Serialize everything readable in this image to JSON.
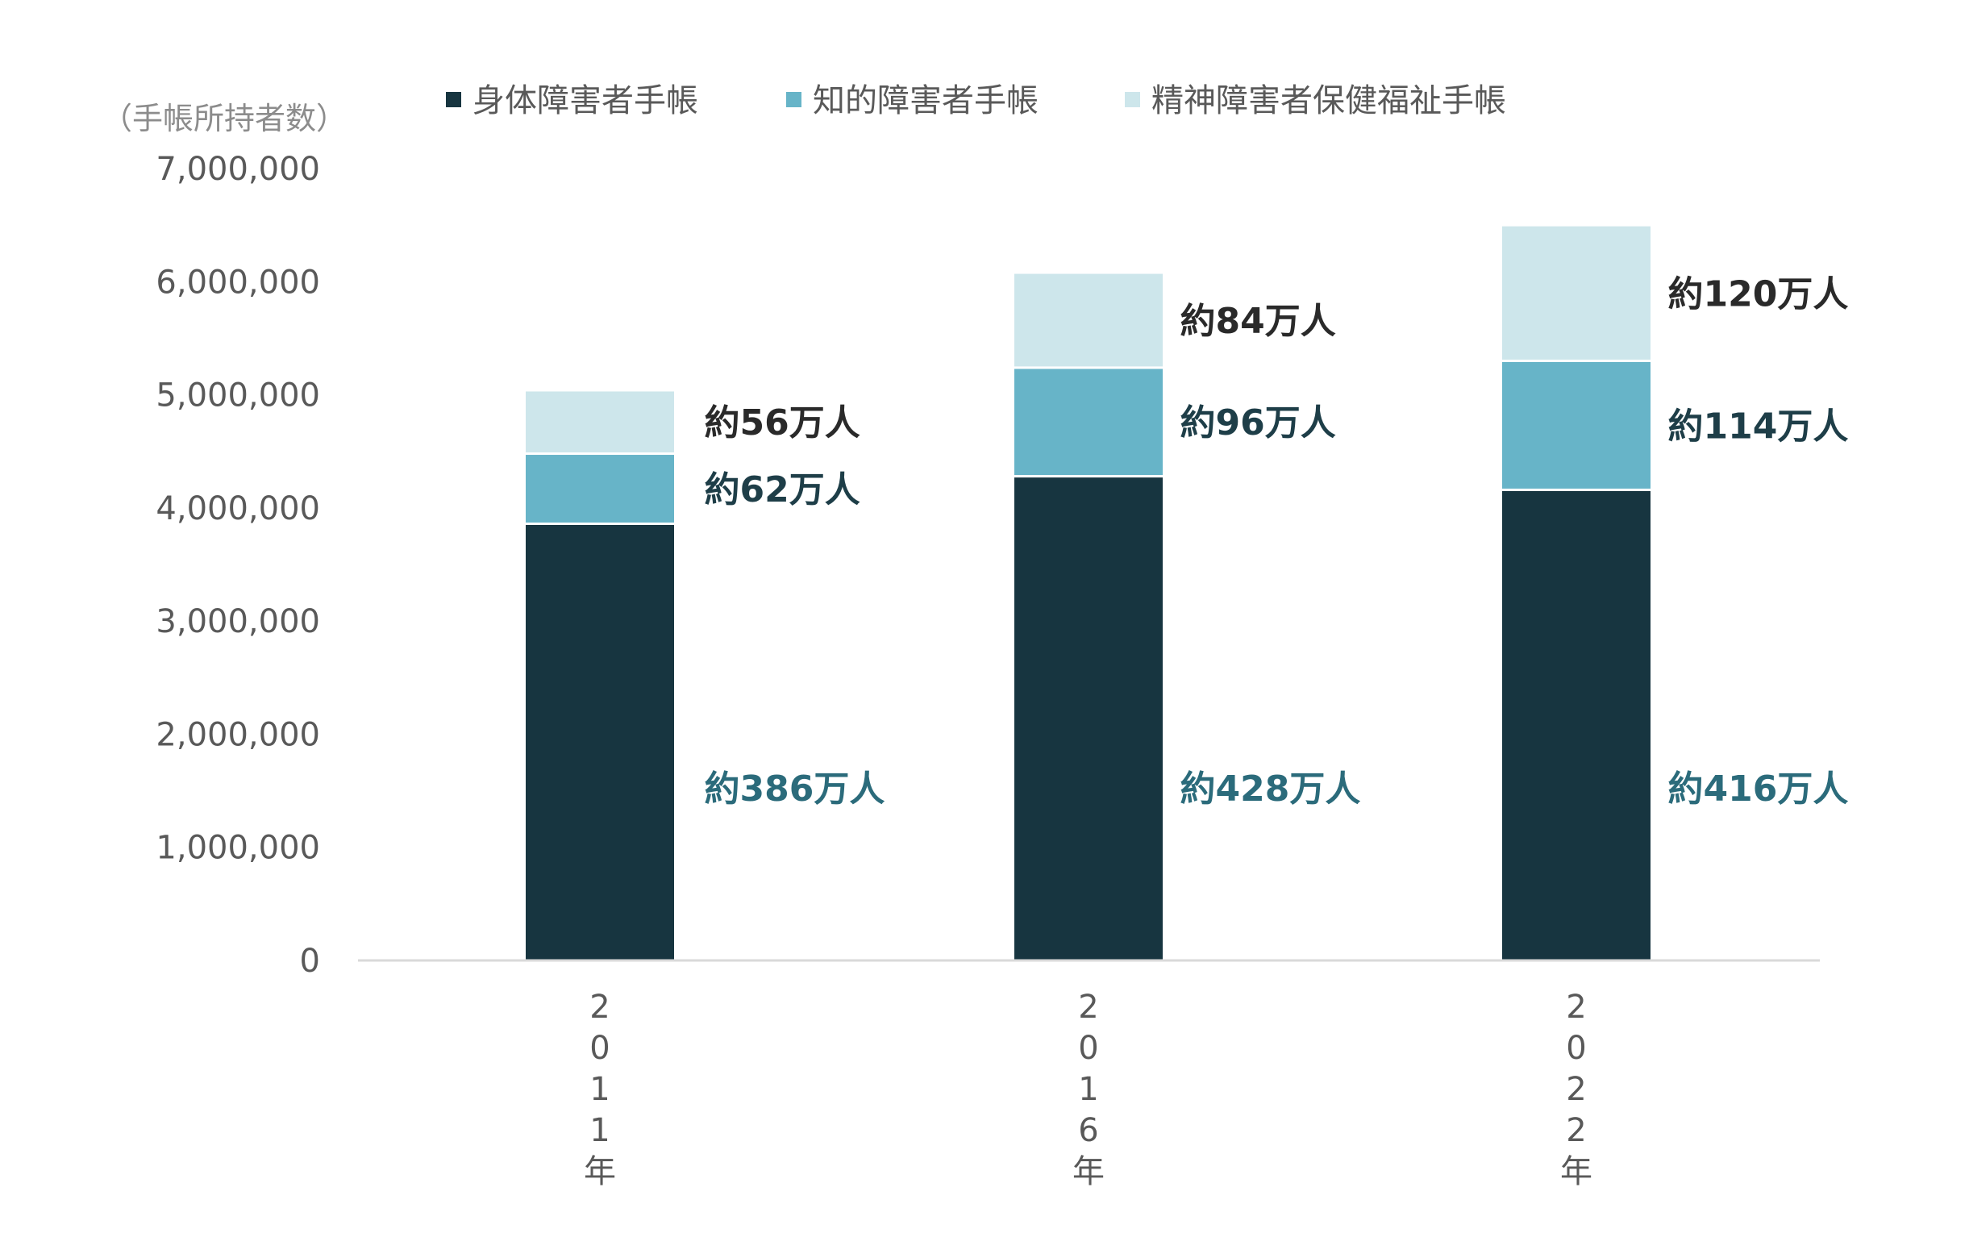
{
  "chart_data": {
    "type": "bar",
    "stacked": true,
    "title": "",
    "ylabel": "（手帳所持者数）",
    "xlabel": "",
    "ylim": [
      0,
      7000000
    ],
    "yticks": [
      "0",
      "1,000,000",
      "2,000,000",
      "3,000,000",
      "4,000,000",
      "5,000,000",
      "6,000,000",
      "7,000,000"
    ],
    "categories": [
      "2011年",
      "2016年",
      "2022年"
    ],
    "legend_position": "top",
    "grid": false,
    "series": [
      {
        "name": "身体障害者手帳",
        "color": "#173540",
        "label_color": "#2b6b7b",
        "values": [
          3860000,
          4280000,
          4160000
        ],
        "labels": [
          "約386万人",
          "約428万人",
          "約416万人"
        ]
      },
      {
        "name": "知的障害者手帳",
        "color": "#67b4c8",
        "label_color": "#1e3e48",
        "values": [
          620000,
          960000,
          1140000
        ],
        "labels": [
          "約62万人",
          "約96万人",
          "約114万人"
        ]
      },
      {
        "name": "精神障害者保健福祉手帳",
        "color": "#cde6eb",
        "label_color": "#2a2a2a",
        "values": [
          560000,
          840000,
          1200000
        ],
        "labels": [
          "約56万人",
          "約84万人",
          "約120万人"
        ]
      }
    ]
  }
}
